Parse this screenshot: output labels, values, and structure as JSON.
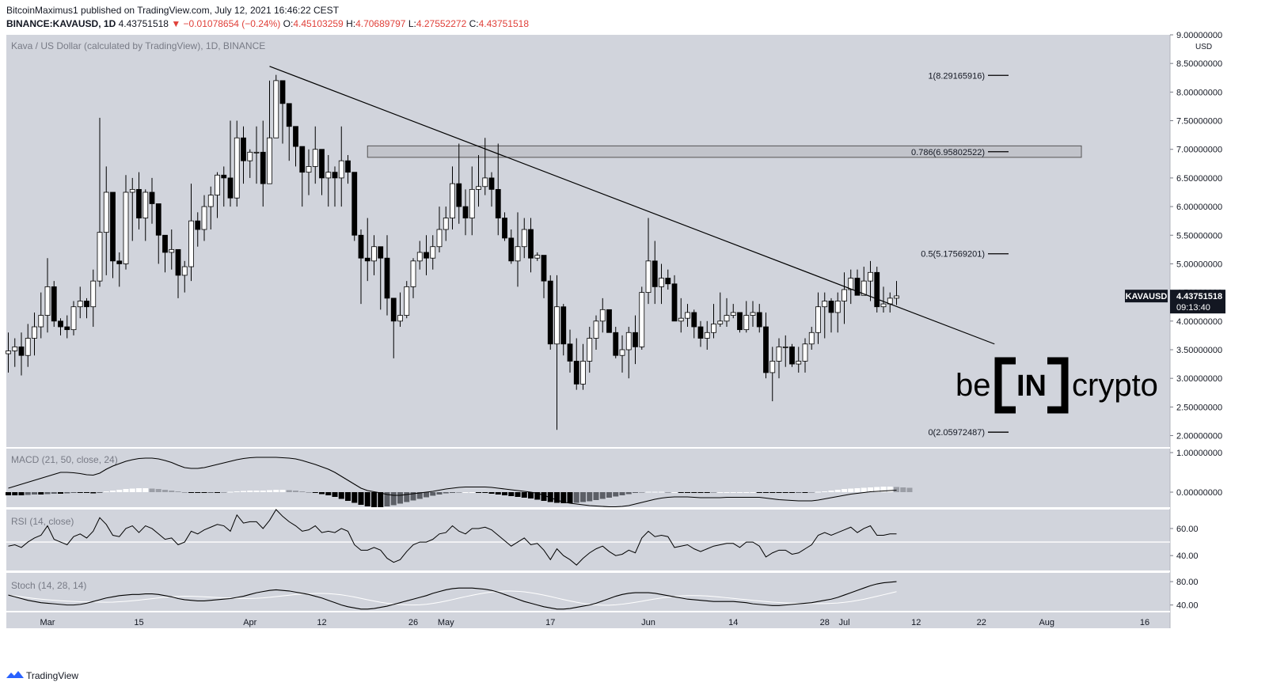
{
  "header": {
    "publisher_line": "BitcoinMaximus1 published on TradingView.com, July 12, 2021 16:46:22 CEST",
    "symbol": "BINANCE:KAVAUSD, 1D",
    "last": "4.43751518",
    "change": "▼ −0.01078654 (−0.24%)",
    "open_label": "O:",
    "open": "4.45103259",
    "high_label": "H:",
    "high": "4.70689797",
    "low_label": "L:",
    "low": "4.27552272",
    "close_label": "C:",
    "close": "4.43751518"
  },
  "footer": {
    "brand": "TradingView"
  },
  "colors": {
    "pane_bg": "#d1d4dc",
    "scale_bg": "#ffffff",
    "candle_up": "#ffffff",
    "candle_down": "#000000",
    "line": "#000000",
    "fib_zone": "#c0c2c9"
  },
  "chart_data": {
    "type": "candlestick",
    "title": "Kava / US Dollar (calculated by TradingView), 1D, BINANCE",
    "currency": "USD",
    "ylim": [
      1.8,
      9.0
    ],
    "y_ticks": [
      "2.00000000",
      "2.50000000",
      "3.00000000",
      "3.50000000",
      "4.00000000",
      "4.50000000",
      "5.00000000",
      "5.50000000",
      "6.00000000",
      "6.50000000",
      "7.00000000",
      "7.50000000",
      "8.00000000",
      "8.50000000",
      "9.00000000"
    ],
    "y_tick_values": [
      2.0,
      2.5,
      3.0,
      3.5,
      4.0,
      4.5,
      5.0,
      5.5,
      6.0,
      6.5,
      7.0,
      7.5,
      8.0,
      8.5,
      9.0
    ],
    "start_date": "2021-02-23",
    "x_ticks": [
      {
        "label": "Mar",
        "day": 6
      },
      {
        "label": "15",
        "day": 20
      },
      {
        "label": "Apr",
        "day": 37
      },
      {
        "label": "12",
        "day": 48
      },
      {
        "label": "26",
        "day": 62
      },
      {
        "label": "May",
        "day": 67
      },
      {
        "label": "17",
        "day": 83
      },
      {
        "label": "Jun",
        "day": 98
      },
      {
        "label": "14",
        "day": 111
      },
      {
        "label": "28",
        "day": 125
      },
      {
        "label": "Jul",
        "day": 128
      },
      {
        "label": "12",
        "day": 139
      },
      {
        "label": "22",
        "day": 149
      },
      {
        "label": "Aug",
        "day": 159
      },
      {
        "label": "16",
        "day": 174
      }
    ],
    "candles_close": [
      3.48,
      3.55,
      3.4,
      3.7,
      3.9,
      4.1,
      4.6,
      4.0,
      3.9,
      3.85,
      4.25,
      4.35,
      4.25,
      4.7,
      5.55,
      6.25,
      5.05,
      5.0,
      6.25,
      6.3,
      5.8,
      6.25,
      6.05,
      5.5,
      5.2,
      5.25,
      4.8,
      4.95,
      5.75,
      5.6,
      6.0,
      6.2,
      6.55,
      6.5,
      6.15,
      7.2,
      6.8,
      6.95,
      6.95,
      6.4,
      7.2,
      8.2,
      7.8,
      7.4,
      7.05,
      6.6,
      6.7,
      7.0,
      6.5,
      6.6,
      6.5,
      6.8,
      6.6,
      5.5,
      5.1,
      5.05,
      5.3,
      5.1,
      4.4,
      4.0,
      4.1,
      4.6,
      5.05,
      5.2,
      5.1,
      5.3,
      5.6,
      5.8,
      6.4,
      6.0,
      5.8,
      6.3,
      6.35,
      6.5,
      6.3,
      5.8,
      5.45,
      5.05,
      5.3,
      5.6,
      5.1,
      5.15,
      4.7,
      3.6,
      4.25,
      3.6,
      3.3,
      2.9,
      3.3,
      3.7,
      4.0,
      4.2,
      3.8,
      3.4,
      3.5,
      3.8,
      3.55,
      4.5,
      5.05,
      4.6,
      4.75,
      4.65,
      4.0,
      4.05,
      4.15,
      3.9,
      3.7,
      3.8,
      3.95,
      4.0,
      4.1,
      4.15,
      3.85,
      4.1,
      4.15,
      3.9,
      3.1,
      3.3,
      3.55,
      3.55,
      3.25,
      3.3,
      3.6,
      3.8,
      4.25,
      4.35,
      4.15,
      4.35,
      4.55,
      4.75,
      4.45,
      4.7,
      4.85,
      4.25,
      4.3,
      4.4,
      4.44
    ],
    "candles_high": [
      3.8,
      3.7,
      3.8,
      3.95,
      4.15,
      4.5,
      5.1,
      4.7,
      4.05,
      4.1,
      4.35,
      4.6,
      4.4,
      4.9,
      7.55,
      6.7,
      5.5,
      5.2,
      6.55,
      6.5,
      6.6,
      6.3,
      6.5,
      6.05,
      5.4,
      5.6,
      5.05,
      5.05,
      6.4,
      5.9,
      6.2,
      6.35,
      6.6,
      6.7,
      7.5,
      7.5,
      7.4,
      7.0,
      7.4,
      7.5,
      8.2,
      8.3,
      8.1,
      7.5,
      7.3,
      6.8,
      7.0,
      7.4,
      6.8,
      6.9,
      6.7,
      7.4,
      6.9,
      6.6,
      5.6,
      5.8,
      5.5,
      5.3,
      5.5,
      4.4,
      4.5,
      4.7,
      5.1,
      5.4,
      5.5,
      5.5,
      6.0,
      6.0,
      6.7,
      7.1,
      6.3,
      6.7,
      6.9,
      7.2,
      6.6,
      7.1,
      5.9,
      5.6,
      5.9,
      5.8,
      5.8,
      5.2,
      5.1,
      4.8,
      4.8,
      4.3,
      3.85,
      3.7,
      3.6,
      3.9,
      4.1,
      4.4,
      4.2,
      3.9,
      3.75,
      3.9,
      4.1,
      4.6,
      5.8,
      5.4,
      5.0,
      4.9,
      4.8,
      4.4,
      4.3,
      4.2,
      4.0,
      4.0,
      4.3,
      4.5,
      4.4,
      4.3,
      4.15,
      4.35,
      4.35,
      4.3,
      4.15,
      3.55,
      3.7,
      3.75,
      3.6,
      3.55,
      3.7,
      3.9,
      4.5,
      4.5,
      4.4,
      4.5,
      4.85,
      4.9,
      4.9,
      4.95,
      5.05,
      4.95,
      4.6,
      4.5,
      4.7
    ],
    "candles_low": [
      3.1,
      3.2,
      3.05,
      3.2,
      3.4,
      3.7,
      3.8,
      3.9,
      3.75,
      3.7,
      3.75,
      4.05,
      4.05,
      3.9,
      4.6,
      4.8,
      4.75,
      4.6,
      4.9,
      5.4,
      5.6,
      5.4,
      5.7,
      5.0,
      4.85,
      4.9,
      4.4,
      4.5,
      4.7,
      5.3,
      5.4,
      5.6,
      5.8,
      6.0,
      6.0,
      6.0,
      6.4,
      6.5,
      6.4,
      6.0,
      6.6,
      7.2,
      7.1,
      6.8,
      6.7,
      6.0,
      6.2,
      6.4,
      6.2,
      6.0,
      6.0,
      6.0,
      6.4,
      5.4,
      4.3,
      4.7,
      4.8,
      4.2,
      4.1,
      3.35,
      3.9,
      4.05,
      4.4,
      4.9,
      4.8,
      4.9,
      5.2,
      5.4,
      5.6,
      5.7,
      5.5,
      5.5,
      6.0,
      6.2,
      6.0,
      5.5,
      5.4,
      5.0,
      4.6,
      5.1,
      4.85,
      5.05,
      4.4,
      3.5,
      2.1,
      3.4,
      3.1,
      2.8,
      2.8,
      3.1,
      3.5,
      3.8,
      3.8,
      3.35,
      3.1,
      3.0,
      3.25,
      3.5,
      4.3,
      4.3,
      4.3,
      4.55,
      4.0,
      3.8,
      3.9,
      3.7,
      3.55,
      3.5,
      3.7,
      3.9,
      3.9,
      4.05,
      3.8,
      3.8,
      3.9,
      3.8,
      3.0,
      2.6,
      3.0,
      3.2,
      3.2,
      3.1,
      3.1,
      3.5,
      3.6,
      3.7,
      3.8,
      3.8,
      3.95,
      4.3,
      4.45,
      4.45,
      4.35,
      4.15,
      4.15,
      4.15,
      4.28
    ],
    "trendline": {
      "from": {
        "day": 40,
        "value": 8.45
      },
      "to": {
        "day": 151,
        "value": 3.6
      }
    },
    "resistance_zone": {
      "from_day": 55,
      "low": 6.86,
      "high": 7.06
    },
    "fib_levels": [
      {
        "label": "1(8.29165916)",
        "value": 8.29165916
      },
      {
        "label": "0.786(6.95802522)",
        "value": 6.95802522
      },
      {
        "label": "0.5(5.17569201)",
        "value": 5.17569201
      },
      {
        "label": "0(2.05972487)",
        "value": 2.05972487
      }
    ],
    "price_tag": {
      "symbol": "KAVAUSD",
      "value": "4.43751518",
      "countdown": "09:13:40"
    },
    "watermark": {
      "left": "be",
      "mid": "IN",
      "right": "crypto"
    },
    "macd": {
      "label": "MACD (21, 50, close, 24)",
      "ylim": [
        -0.38,
        1.1
      ],
      "y_ticks": [
        "1.00000000",
        "0.00000000"
      ],
      "y_tick_values": [
        1.0,
        0.0
      ],
      "macd_line": [
        0.1,
        0.15,
        0.2,
        0.25,
        0.3,
        0.35,
        0.4,
        0.45,
        0.5,
        0.5,
        0.49,
        0.47,
        0.44,
        0.43,
        0.48,
        0.58,
        0.66,
        0.72,
        0.78,
        0.82,
        0.85,
        0.86,
        0.86,
        0.84,
        0.8,
        0.75,
        0.68,
        0.62,
        0.6,
        0.6,
        0.62,
        0.66,
        0.7,
        0.74,
        0.78,
        0.82,
        0.85,
        0.87,
        0.88,
        0.88,
        0.88,
        0.88,
        0.87,
        0.86,
        0.84,
        0.8,
        0.75,
        0.7,
        0.64,
        0.58,
        0.5,
        0.4,
        0.3,
        0.2,
        0.1,
        0.04,
        0.01,
        -0.02,
        -0.06,
        -0.08,
        -0.08,
        -0.06,
        -0.04,
        -0.02,
        0.0,
        0.02,
        0.05,
        0.08,
        0.1,
        0.12,
        0.13,
        0.13,
        0.13,
        0.13,
        0.12,
        0.1,
        0.08,
        0.06,
        0.04,
        0.02,
        0.0,
        -0.03,
        -0.08,
        -0.14,
        -0.2,
        -0.25,
        -0.28,
        -0.3,
        -0.32,
        -0.34,
        -0.35,
        -0.36,
        -0.37,
        -0.37,
        -0.36,
        -0.34,
        -0.3,
        -0.26,
        -0.22,
        -0.18,
        -0.15,
        -0.13,
        -0.12,
        -0.12,
        -0.12,
        -0.13,
        -0.14,
        -0.14,
        -0.14,
        -0.14,
        -0.13,
        -0.13,
        -0.13,
        -0.13,
        -0.13,
        -0.13,
        -0.15,
        -0.17,
        -0.19,
        -0.2,
        -0.21,
        -0.22,
        -0.22,
        -0.22,
        -0.2,
        -0.17,
        -0.14,
        -0.11,
        -0.08,
        -0.05,
        -0.03,
        -0.01,
        0.01,
        0.02,
        0.03,
        0.04,
        0.05
      ],
      "hist": [
        -0.08,
        -0.08,
        -0.08,
        -0.07,
        -0.06,
        -0.06,
        -0.05,
        -0.04,
        -0.04,
        -0.03,
        -0.02,
        -0.02,
        -0.02,
        -0.03,
        -0.01,
        0.02,
        0.04,
        0.06,
        0.08,
        0.09,
        0.1,
        0.1,
        0.09,
        0.08,
        0.06,
        0.04,
        0.02,
        0.0,
        -0.01,
        -0.02,
        -0.02,
        -0.01,
        -0.01,
        0.0,
        0.01,
        0.02,
        0.03,
        0.04,
        0.04,
        0.04,
        0.05,
        0.06,
        0.06,
        0.05,
        0.04,
        0.02,
        0.0,
        -0.02,
        -0.05,
        -0.08,
        -0.12,
        -0.17,
        -0.22,
        -0.27,
        -0.32,
        -0.36,
        -0.38,
        -0.38,
        -0.36,
        -0.33,
        -0.29,
        -0.25,
        -0.21,
        -0.17,
        -0.13,
        -0.09,
        -0.06,
        -0.03,
        -0.01,
        0.0,
        0.0,
        0.0,
        -0.01,
        -0.02,
        -0.04,
        -0.06,
        -0.08,
        -0.1,
        -0.12,
        -0.14,
        -0.16,
        -0.19,
        -0.22,
        -0.25,
        -0.27,
        -0.28,
        -0.28,
        -0.27,
        -0.25,
        -0.23,
        -0.2,
        -0.17,
        -0.14,
        -0.11,
        -0.08,
        -0.05,
        -0.02,
        0.0,
        0.01,
        0.01,
        0.01,
        0.0,
        0.0,
        -0.01,
        -0.01,
        -0.01,
        -0.01,
        -0.01,
        0.0,
        0.0,
        0.0,
        0.0,
        0.0,
        0.0,
        0.0,
        -0.01,
        -0.02,
        -0.02,
        -0.02,
        -0.02,
        -0.02,
        -0.01,
        -0.01,
        0.0,
        0.01,
        0.02,
        0.04,
        0.06,
        0.08,
        0.09,
        0.1,
        0.11,
        0.12,
        0.13,
        0.14,
        0.14,
        0.13,
        0.12,
        0.11
      ]
    },
    "rsi": {
      "label": "RSI (14, close)",
      "ylim": [
        29,
        74
      ],
      "y_ticks": [
        "60.00",
        "40.00"
      ],
      "y_tick_values": [
        60,
        40
      ],
      "level": 50,
      "values": [
        47,
        48,
        46,
        50,
        53,
        55,
        62,
        52,
        50,
        48,
        54,
        56,
        53,
        58,
        68,
        63,
        55,
        54,
        60,
        62,
        57,
        62,
        60,
        56,
        52,
        53,
        48,
        50,
        58,
        56,
        59,
        61,
        63,
        62,
        58,
        70,
        64,
        65,
        65,
        60,
        66,
        74,
        69,
        65,
        62,
        58,
        59,
        62,
        57,
        58,
        57,
        60,
        58,
        48,
        44,
        44,
        46,
        44,
        38,
        35,
        37,
        43,
        48,
        50,
        50,
        52,
        56,
        57,
        62,
        58,
        56,
        60,
        60,
        61,
        59,
        55,
        51,
        47,
        50,
        53,
        48,
        49,
        44,
        37,
        45,
        40,
        37,
        33,
        38,
        42,
        45,
        47,
        43,
        40,
        41,
        44,
        42,
        53,
        58,
        54,
        55,
        54,
        46,
        47,
        48,
        45,
        43,
        45,
        47,
        48,
        49,
        49,
        46,
        50,
        50,
        47,
        39,
        42,
        44,
        44,
        41,
        42,
        45,
        48,
        55,
        57,
        55,
        57,
        59,
        61,
        57,
        60,
        62,
        55,
        55,
        56,
        56
      ]
    },
    "stoch": {
      "label": "Stoch (14, 28, 14)",
      "ylim": [
        30,
        95
      ],
      "y_ticks": [
        "80.00",
        "40.00"
      ],
      "y_tick_values": [
        80,
        40
      ],
      "k": [
        57,
        54,
        51,
        48,
        46,
        44,
        43,
        42,
        41,
        40,
        40,
        41,
        43,
        46,
        49,
        52,
        54,
        56,
        57,
        58,
        58,
        59,
        59,
        58,
        56,
        54,
        51,
        49,
        48,
        47,
        47,
        48,
        49,
        50,
        51,
        53,
        55,
        58,
        61,
        63,
        65,
        66,
        65,
        64,
        62,
        60,
        58,
        55,
        52,
        48,
        44,
        40,
        37,
        35,
        33,
        33,
        34,
        36,
        38,
        41,
        44,
        47,
        50,
        53,
        56,
        60,
        63,
        66,
        68,
        69,
        69,
        69,
        68,
        67,
        65,
        62,
        58,
        54,
        50,
        46,
        43,
        40,
        37,
        35,
        33,
        33,
        34,
        36,
        38,
        40,
        43,
        47,
        51,
        55,
        58,
        60,
        61,
        61,
        61,
        60,
        58,
        56,
        54,
        52,
        50,
        49,
        48,
        47,
        46,
        46,
        46,
        46,
        45,
        44,
        42,
        41,
        40,
        39,
        39,
        40,
        41,
        42,
        43,
        44,
        46,
        48,
        50,
        53,
        57,
        61,
        65,
        69,
        73,
        76,
        78,
        79,
        80
      ]
    }
  }
}
